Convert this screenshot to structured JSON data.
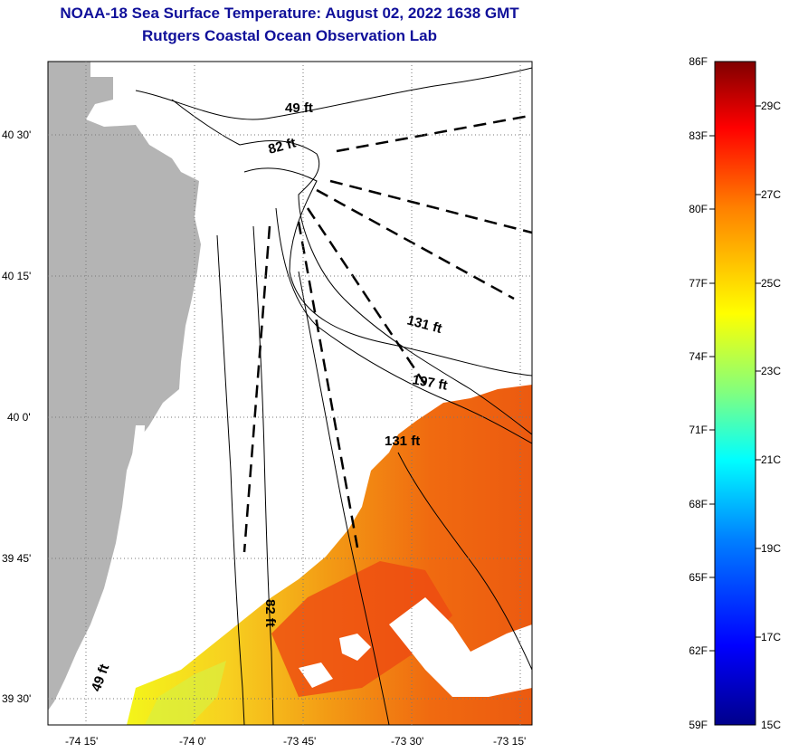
{
  "title": {
    "line1": "NOAA-18 Sea Surface Temperature:  August 02, 2022 1638 GMT",
    "line2": "Rutgers Coastal Ocean Observation Lab"
  },
  "map": {
    "lat_labels": [
      "40 30'",
      "40 15'",
      "40 0'",
      "39 45'",
      "39 30'"
    ],
    "lon_labels": [
      "-74 15'",
      "-74 0'",
      "-73 45'",
      "-73 30'",
      "-73 15'"
    ],
    "contour_labels": {
      "d49_top": "49 ft",
      "d82_top": "82 ft",
      "d131_mid": "131 ft",
      "d197": "197 ft",
      "d131_low": "131 ft",
      "d82_low": "82 ft",
      "d49_low": "49 ft"
    },
    "colors": {
      "land": "#b4b4b4",
      "coast": "#000000"
    }
  },
  "colorbar": {
    "f_labels": [
      "86F",
      "83F",
      "80F",
      "77F",
      "74F",
      "71F",
      "68F",
      "65F",
      "62F",
      "59F"
    ],
    "c_labels": [
      "29C",
      "27C",
      "25C",
      "23C",
      "21C",
      "19C",
      "17C",
      "15C"
    ],
    "stops": [
      "#00008b",
      "#0000ff",
      "#0080ff",
      "#00ffff",
      "#80ff80",
      "#ffff00",
      "#ff8000",
      "#ff0000",
      "#800000"
    ]
  }
}
